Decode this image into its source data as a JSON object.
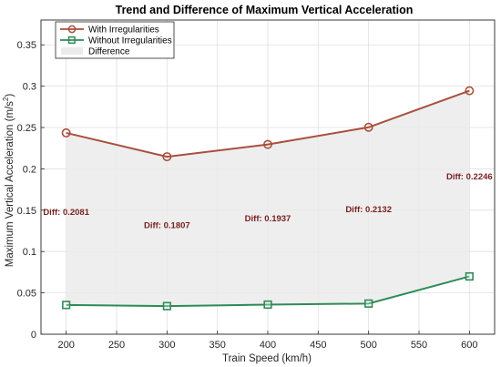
{
  "chart_data": {
    "type": "line",
    "title": "Trend and Difference of Maximum Vertical Acceleration",
    "xlabel": "Train Speed (km/h)",
    "ylabel": "Maximum Vertical Acceleration (m/s²)",
    "x": [
      200,
      300,
      400,
      500,
      600
    ],
    "xlim": [
      175,
      625
    ],
    "ylim": [
      0,
      0.38
    ],
    "xticks": [
      200,
      250,
      300,
      350,
      400,
      450,
      500,
      550,
      600
    ],
    "yticks": [
      0,
      0.05,
      0.1,
      0.15,
      0.2,
      0.25,
      0.3,
      0.35
    ],
    "grid": true,
    "legend_position": "top-left",
    "series": [
      {
        "name": "With Irregularities",
        "values": [
          0.2435,
          0.2147,
          0.2295,
          0.2503,
          0.2945
        ],
        "color": "#a94f3c",
        "marker": "circle"
      },
      {
        "name": "Without Irregularities",
        "values": [
          0.0354,
          0.034,
          0.0358,
          0.0371,
          0.0699
        ],
        "color": "#2e8b57",
        "marker": "square"
      }
    ],
    "fill": {
      "name": "Difference",
      "color": "#ebebeb"
    },
    "annotations": [
      {
        "text": "Diff: 0.2081",
        "x": 200,
        "y": 0.1445
      },
      {
        "text": "Diff: 0.1807",
        "x": 300,
        "y": 0.1283
      },
      {
        "text": "Diff: 0.1937",
        "x": 400,
        "y": 0.1365
      },
      {
        "text": "Diff: 0.2132",
        "x": 500,
        "y": 0.1475
      },
      {
        "text": "Diff: 0.2246",
        "x": 600,
        "y": 0.1875
      }
    ],
    "annotation_color": "#7a1f1f"
  }
}
